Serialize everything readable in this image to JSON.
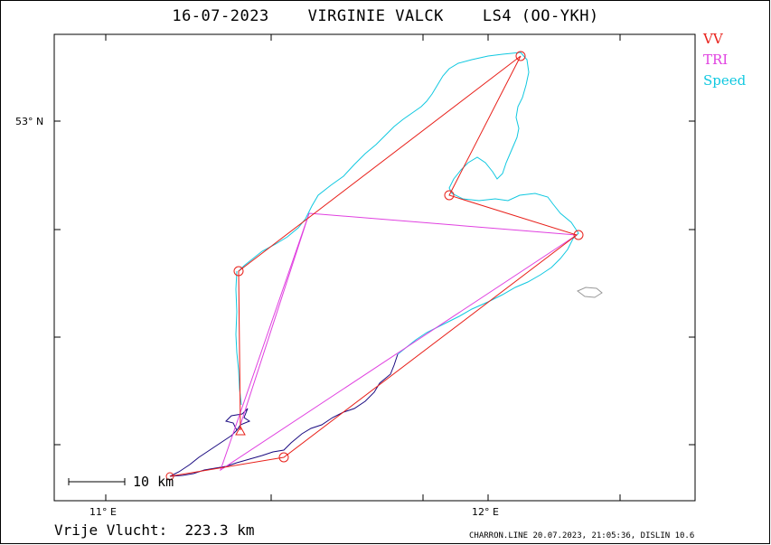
{
  "title": "16-07-2023    VIRGINIE VALCK    LS4 (OO-YKH)",
  "legend": [
    {
      "label": "VV",
      "color": "#e8201a"
    },
    {
      "label": "TRI",
      "color": "#e040e0"
    },
    {
      "label": "Speed",
      "color": "#10c8e0"
    }
  ],
  "axes": {
    "lat_label": "53° N",
    "lon_labels": [
      "11° E",
      "12° E"
    ]
  },
  "scale_bar": {
    "label": "10 km"
  },
  "distance_text": "Vrije Vlucht:  223.3 km",
  "footer": "CHARRON.LINE 20.07.2023, 21:05:36, DISLIN 10.6",
  "colors": {
    "vv": "#e8201a",
    "tri": "#e040e0",
    "speed": "#10c8e0",
    "track_low": "#1a0a80",
    "landmark": "#999999"
  }
}
